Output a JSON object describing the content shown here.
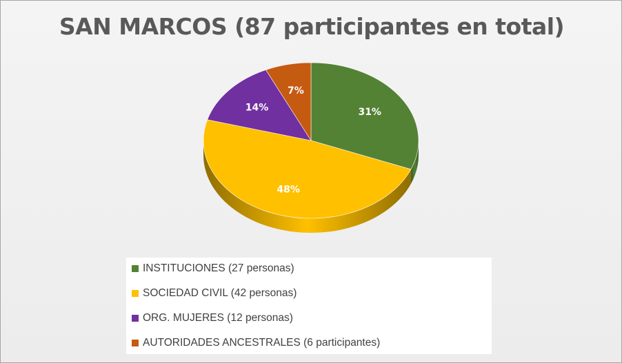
{
  "chart_data": {
    "type": "pie",
    "title": "SAN MARCOS (87 participantes en total)",
    "categories": [
      "INSTITUCIONES (27 personas)",
      "SOCIEDAD CIVIL (42 personas)",
      "ORG. MUJERES (12 personas)",
      "AUTORIDADES ANCESTRALES (6 participantes)"
    ],
    "values": [
      27,
      42,
      12,
      6
    ],
    "data_labels": [
      "31%",
      "48%",
      "14%",
      "7%"
    ],
    "colors": [
      "#548235",
      "#ffc000",
      "#7030a0",
      "#c55a11"
    ],
    "shade_colors": [
      "#3b5c25",
      "#8f6d00",
      "#4b1f6b",
      "#7e390b"
    ],
    "label_colors": [
      "#ffffff",
      "#ffffff",
      "#ffffff",
      "#ffffff"
    ],
    "legend_position": "bottom"
  }
}
